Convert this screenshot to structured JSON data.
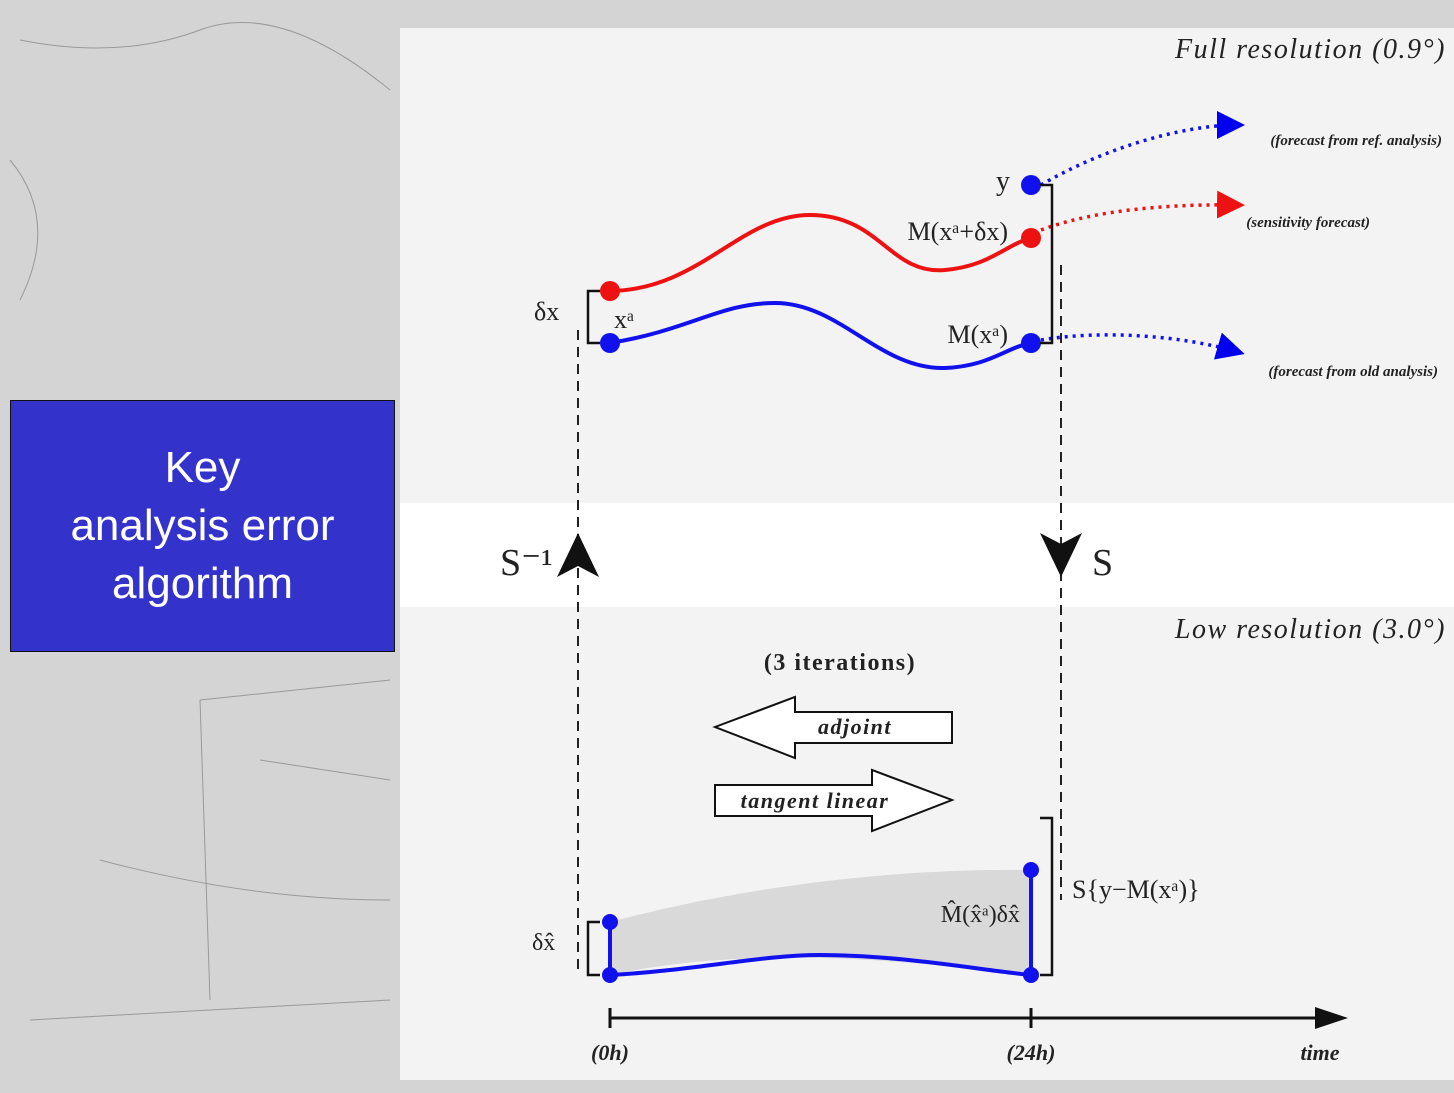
{
  "title_lines": [
    "Key",
    "analysis error",
    "algorithm"
  ],
  "full_resolution": "Full resolution (0.9°)",
  "low_resolution": "Low resolution (3.0°)",
  "labels": {
    "y": "y",
    "perturbed_forecast": "M(xᵃ+δx)",
    "old_forecast": "M(xᵃ)",
    "analysis": "xᵃ",
    "delta_x": "δx",
    "forecast_ref": "(forecast from ref. analysis)",
    "forecast_sensitivity": "(sensitivity forecast)",
    "forecast_old": "(forecast from old analysis)",
    "s_inverse": "S⁻¹",
    "s": "S",
    "iterations": "(3 iterations)",
    "adjoint": "adjoint",
    "tangent_linear": "tangent linear",
    "tl_product": "M̂(x̂ᵃ)δx̂",
    "projected_error": "S{y−M(xᵃ)}",
    "delta_x_hat": "δx̂"
  },
  "time_axis": {
    "start": "(0h)",
    "end": "(24h)",
    "label": "time"
  }
}
